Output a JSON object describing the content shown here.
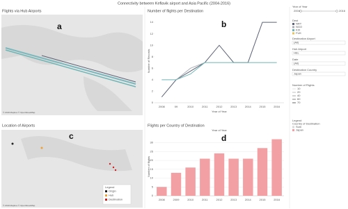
{
  "title": "Connectivity between Keflavik airport and Asia Pacific (2004-2016)",
  "map_a": {
    "title": "Flights via Hub Airports",
    "letter": "a",
    "credit": "© 2019 Mapbox © OpenStreetMap"
  },
  "map_c": {
    "title": "Location of Airports",
    "letter": "c",
    "credit": "© 2019 Mapbox © OpenStreetMap",
    "legend_title": "Legend",
    "legend": [
      "Origin",
      "Hub",
      "Destination"
    ]
  },
  "chart_data": [
    {
      "type": "line",
      "title": "Number of flights per Destination",
      "letter": "b",
      "x_label": "Year of Year",
      "y_label": "Number of Records",
      "legend_title": "Dest",
      "categories": [
        "2008",
        "09",
        "2010",
        "2011",
        "2012",
        "2013",
        "2014",
        "2015",
        "2016"
      ],
      "series": [
        {
          "name": "NRT",
          "color": "#5b6275",
          "values": [
            1,
            4,
            5.5,
            7,
            10,
            7,
            7,
            14,
            14
          ]
        },
        {
          "name": "NGO",
          "color": "#a9adb5",
          "values": [
            null,
            4,
            6,
            7,
            null,
            null,
            null,
            null,
            null
          ]
        },
        {
          "name": "KIX",
          "color": "#6fb5b5",
          "values": [
            4,
            4,
            5,
            7,
            7,
            7,
            7,
            7,
            7
          ]
        },
        {
          "name": "FUK",
          "color": "#e8c15a",
          "values": [
            null,
            null,
            null,
            null,
            null,
            null,
            null,
            null,
            null
          ]
        }
      ],
      "ylim": [
        0,
        14.5
      ],
      "yticks": [
        0,
        2,
        4,
        6,
        8,
        10,
        12,
        14
      ],
      "grid": false
    },
    {
      "type": "bar",
      "title": "Flights per Country of Destination",
      "letter": "d",
      "x_label": "Year of Year",
      "y_label": "Number of flights",
      "categories": [
        "2008",
        "2009",
        "2010",
        "2011",
        "2012",
        "2013",
        "2014",
        "2015",
        "2016"
      ],
      "series": [
        {
          "name": "Japan",
          "color": "#f2a0a4",
          "values": [
            5,
            13,
            16,
            21,
            24,
            21,
            21,
            27,
            32
          ]
        }
      ],
      "ylim": [
        0,
        33
      ],
      "yticks": [
        0,
        5,
        10,
        15,
        20,
        25,
        30
      ],
      "grid": true
    }
  ],
  "sidebar": {
    "year_filter": {
      "label": "Year of Year",
      "from": "2004",
      "to": "2016"
    },
    "filters": [
      {
        "label": "Destination Airport",
        "value": "(All)"
      },
      {
        "label": "Hub Airport",
        "value": "HEL"
      },
      {
        "label": "Date",
        "value": "(All)"
      },
      {
        "label": "Destination Country",
        "value": "Japan"
      }
    ],
    "size_legend": {
      "label": "Number of Flights",
      "items": [
        "10",
        "20",
        "40",
        "60",
        "70"
      ]
    },
    "color_legend": {
      "title": "Legend",
      "subtitle": "Country of Destination",
      "items": [
        "Sum"
      ]
    }
  }
}
